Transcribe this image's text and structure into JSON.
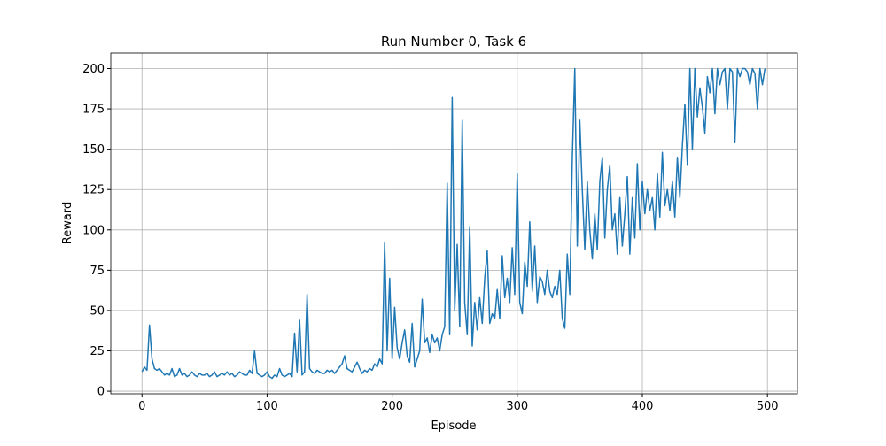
{
  "chart_data": {
    "type": "line",
    "title": "Run Number 0, Task 6",
    "x_label": "Episode",
    "y_label": "Reward",
    "color": "#1f77b4",
    "grid": true,
    "xlim": [
      -24.95,
      523.95
    ],
    "xticks": [
      0,
      100,
      200,
      300,
      400,
      500
    ],
    "ylim": [
      -1.6,
      209.6
    ],
    "yticks": [
      0,
      25,
      50,
      75,
      100,
      125,
      150,
      175,
      200
    ],
    "x": [
      0,
      2,
      4,
      6,
      8,
      10,
      12,
      14,
      16,
      18,
      20,
      22,
      24,
      26,
      28,
      30,
      32,
      34,
      36,
      38,
      40,
      42,
      44,
      46,
      48,
      50,
      52,
      54,
      56,
      58,
      60,
      62,
      64,
      66,
      68,
      70,
      72,
      74,
      76,
      78,
      80,
      82,
      84,
      86,
      88,
      90,
      92,
      94,
      96,
      98,
      100,
      102,
      104,
      106,
      108,
      110,
      112,
      114,
      116,
      118,
      120,
      122,
      124,
      126,
      128,
      130,
      132,
      134,
      136,
      138,
      140,
      142,
      144,
      146,
      148,
      150,
      152,
      154,
      156,
      158,
      160,
      162,
      164,
      166,
      168,
      170,
      172,
      174,
      176,
      178,
      180,
      182,
      184,
      186,
      188,
      190,
      192,
      194,
      196,
      198,
      200,
      202,
      204,
      206,
      208,
      210,
      212,
      214,
      216,
      218,
      220,
      222,
      224,
      226,
      228,
      230,
      232,
      234,
      236,
      238,
      240,
      242,
      244,
      246,
      248,
      250,
      252,
      254,
      256,
      258,
      260,
      262,
      264,
      266,
      268,
      270,
      272,
      274,
      276,
      278,
      280,
      282,
      284,
      286,
      288,
      290,
      292,
      294,
      296,
      298,
      300,
      302,
      304,
      306,
      308,
      310,
      312,
      314,
      316,
      318,
      320,
      322,
      324,
      326,
      328,
      330,
      332,
      334,
      336,
      338,
      340,
      342,
      344,
      346,
      348,
      350,
      352,
      354,
      356,
      358,
      360,
      362,
      364,
      366,
      368,
      370,
      372,
      374,
      376,
      378,
      380,
      382,
      384,
      386,
      388,
      390,
      392,
      394,
      396,
      398,
      400,
      402,
      404,
      406,
      408,
      410,
      412,
      414,
      416,
      418,
      420,
      422,
      424,
      426,
      428,
      430,
      432,
      434,
      436,
      438,
      440,
      442,
      444,
      446,
      448,
      450,
      452,
      454,
      456,
      458,
      460,
      462,
      464,
      466,
      468,
      470,
      472,
      474,
      476,
      478,
      480,
      482,
      484,
      486,
      488,
      490,
      492,
      494,
      496,
      498
    ],
    "values": [
      12,
      15,
      13,
      41,
      20,
      14,
      13,
      14,
      12,
      10,
      11,
      10,
      14,
      9,
      10,
      14,
      10,
      11,
      9,
      10,
      12,
      10,
      9,
      11,
      10,
      10,
      11,
      9,
      10,
      12,
      9,
      10,
      11,
      10,
      12,
      10,
      11,
      9,
      10,
      12,
      11,
      10,
      10,
      13,
      11,
      25,
      11,
      10,
      9,
      10,
      12,
      9,
      8,
      10,
      9,
      14,
      10,
      9,
      10,
      11,
      9,
      36,
      12,
      44,
      10,
      12,
      60,
      14,
      12,
      11,
      13,
      12,
      11,
      11,
      13,
      12,
      13,
      11,
      13,
      15,
      17,
      22,
      14,
      13,
      12,
      15,
      18,
      14,
      11,
      13,
      12,
      14,
      13,
      17,
      15,
      20,
      17,
      92,
      25,
      70,
      20,
      52,
      27,
      20,
      30,
      38,
      22,
      18,
      42,
      15,
      20,
      25,
      57,
      30,
      33,
      24,
      35,
      30,
      33,
      25,
      35,
      40,
      129,
      35,
      182,
      50,
      91,
      40,
      168,
      55,
      35,
      102,
      28,
      55,
      38,
      58,
      42,
      70,
      87,
      42,
      48,
      45,
      63,
      45,
      84,
      58,
      70,
      55,
      89,
      60,
      135,
      55,
      48,
      80,
      65,
      105,
      62,
      90,
      55,
      71,
      68,
      60,
      75,
      62,
      58,
      65,
      60,
      75,
      45,
      39,
      85,
      60,
      144,
      200,
      90,
      168,
      125,
      88,
      130,
      100,
      82,
      110,
      88,
      130,
      145,
      95,
      125,
      140,
      100,
      110,
      85,
      120,
      90,
      110,
      133,
      85,
      120,
      95,
      141,
      100,
      130,
      110,
      125,
      112,
      120,
      100,
      135,
      108,
      148,
      115,
      125,
      112,
      130,
      108,
      145,
      120,
      152,
      178,
      140,
      200,
      150,
      200,
      170,
      188,
      176,
      160,
      195,
      185,
      200,
      172,
      200,
      190,
      198,
      200,
      175,
      200,
      198,
      154,
      200,
      195,
      200,
      200,
      198,
      190,
      200,
      197,
      175,
      200,
      190,
      200
    ]
  }
}
